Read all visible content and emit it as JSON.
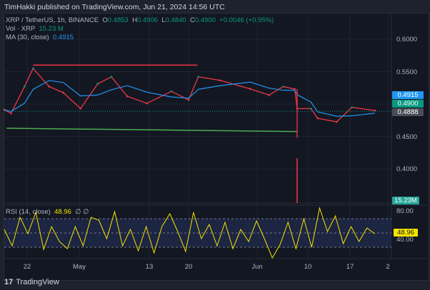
{
  "header": {
    "published": "TimHakki published on TradingView.com, Jun 21, 2024 14:56 UTC"
  },
  "legend": {
    "symbol": "XRP / TetherUS, 1h, BINANCE",
    "o_label": "O",
    "o": "0.4853",
    "h_label": "H",
    "h": "0.4906",
    "l_label": "L",
    "l": "0.4840",
    "c_label": "C",
    "c": "0.4900",
    "change": "+0.0046 (+0.95%)",
    "vol_label": "Vol · XRP",
    "vol": "15.23 M",
    "ma_label": "MA (30, close)",
    "ma": "0.4915",
    "rsi_label": "RSI (14, close)",
    "rsi": "48.96",
    "rsi_extra": "∅ ∅"
  },
  "price_tags": {
    "ma": "0.4915",
    "close": "0.4900",
    "last": "0.4888",
    "volume": "15.23M",
    "rsi": "48.96"
  },
  "colors": {
    "up": "#089981",
    "down": "#f23645",
    "ma": "#2196f3",
    "rsi": "#f5e400",
    "resistance": "#f23645",
    "support": "#4caf50",
    "bg": "#131722"
  },
  "footer": {
    "brand": "TradingView"
  },
  "chart_data": [
    {
      "type": "line",
      "title": "XRP / TetherUS, 1h, BINANCE",
      "yticks": [
        "0.6000",
        "0.5500",
        "0.4500",
        "0.4000"
      ],
      "ylim": [
        0.39,
        0.61
      ],
      "xticks": [
        "22",
        "May",
        "13",
        "20",
        "Jun",
        "10",
        "17",
        "2"
      ],
      "grid": true,
      "series": [
        {
          "name": "XRP / TetherUS",
          "x": [
            "2024-04-17T18",
            "2024-04-18T22",
            "2024-04-21T07",
            "2024-04-22T19",
            "2024-04-25T14",
            "2024-04-28T02",
            "2024-05-01T02",
            "2024-05-04T02",
            "2024-05-06T12",
            "2024-05-09T06",
            "2024-05-12T17",
            "2024-05-17T00",
            "2024-05-20T00",
            "2024-05-21T17",
            "2024-05-25T12",
            "2024-05-30T19",
            "2024-06-03T02",
            "2024-06-05T14",
            "2024-06-07T14",
            "2024-06-08T00",
            "2024-06-10T10",
            "2024-06-11T14",
            "2024-06-14T22",
            "2024-06-17T14",
            "2024-06-21T14"
          ],
          "values": [
            0.4913,
            0.4857,
            0.527,
            0.555,
            0.527,
            0.5176,
            0.493,
            0.531,
            0.542,
            0.512,
            0.501,
            0.5196,
            0.5064,
            0.542,
            0.5365,
            0.5233,
            0.5138,
            0.527,
            0.523,
            0.493,
            0.493,
            0.478,
            0.4725,
            0.495,
            0.49
          ]
        }
      ],
      "annotations": [
        {
          "type": "hline",
          "color": "#f23645",
          "y": 0.56,
          "from": "2024-04-22T19",
          "to": "2024-05-21T14"
        },
        {
          "type": "trendline",
          "color": "#4caf50",
          "from": [
            "2024-04-18T04",
            0.4627
          ],
          "to": [
            "2024-06-08T00",
            0.4575
          ]
        },
        {
          "type": "vline",
          "color": "#f23645",
          "x": "2024-06-08T00",
          "from": 0.523,
          "to": 0.448
        }
      ],
      "last_price": 0.4888
    },
    {
      "type": "line",
      "title": "RSI (14, close)",
      "yticks": [
        "80.00",
        "40.00"
      ],
      "bands": [
        30,
        50,
        70
      ],
      "ylim": [
        10,
        90
      ],
      "values": [
        55,
        32,
        72,
        49,
        79,
        27,
        59,
        38,
        28,
        59,
        32,
        72,
        68,
        42,
        80,
        32,
        55,
        25,
        59,
        22,
        59,
        77,
        52,
        24,
        79,
        42,
        62,
        32,
        65,
        28,
        55,
        38,
        67,
        42,
        15,
        34,
        65,
        28,
        70,
        30,
        85,
        52,
        74,
        35,
        59,
        38,
        57,
        48.96
      ]
    }
  ]
}
